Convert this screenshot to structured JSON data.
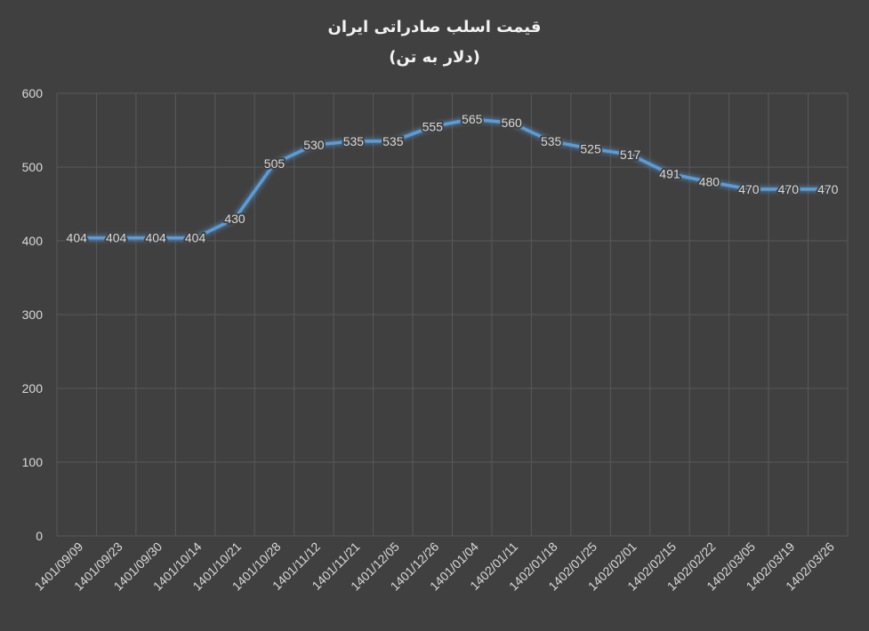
{
  "chart_data": {
    "type": "line",
    "title": "قیمت اسلب صادراتی ایران",
    "subtitle": "(دلار به تن)",
    "xlabel": "",
    "ylabel": "",
    "ylim": [
      0,
      600
    ],
    "yticks": [
      "0",
      "100",
      "200",
      "300",
      "400",
      "500",
      "600"
    ],
    "grid": true,
    "categories": [
      "1401/09/09",
      "1401/09/23",
      "1401/09/30",
      "1401/10/14",
      "1401/10/21",
      "1401/10/28",
      "1401/11/12",
      "1401/11/21",
      "1401/12/05",
      "1401/12/26",
      "1401/01/04",
      "1402/01/11",
      "1402/01/18",
      "1402/01/25",
      "1402/02/01",
      "1402/02/15",
      "1402/02/22",
      "1402/03/05",
      "1402/03/19",
      "1402/03/26"
    ],
    "values": [
      404,
      404,
      404,
      404,
      430,
      505,
      530,
      535,
      535,
      555,
      565,
      560,
      535,
      525,
      517,
      491,
      480,
      470,
      470,
      470
    ],
    "colors": {
      "background": "#404040",
      "grid": "#595959",
      "line": "#5b9bd5",
      "text": "#d9d9d9",
      "title": "#f2f2f2"
    }
  }
}
